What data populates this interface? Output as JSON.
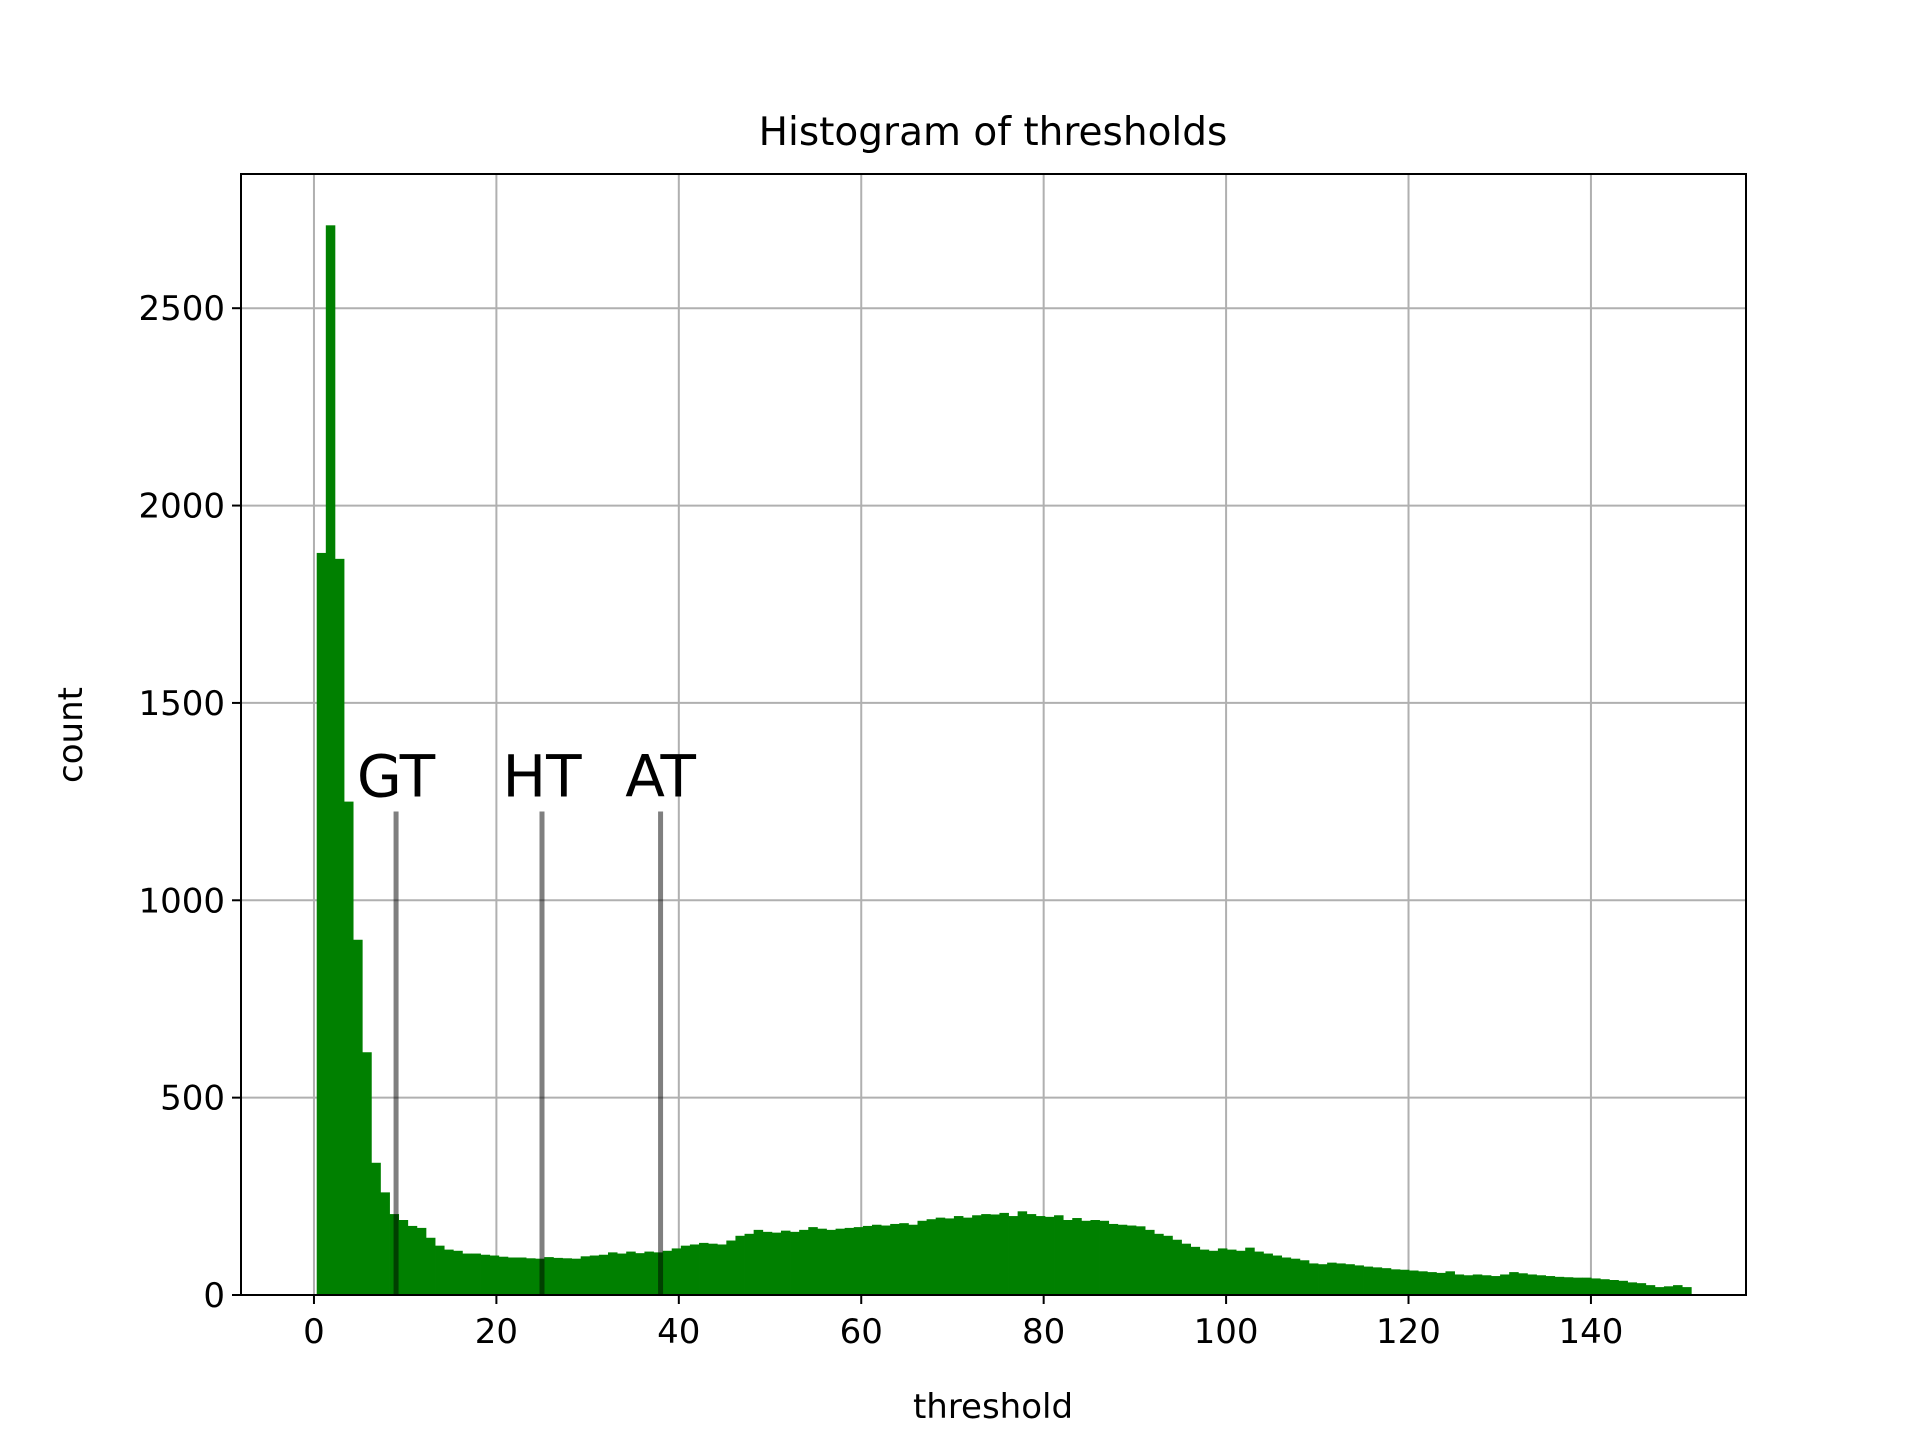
{
  "chart_data": {
    "type": "bar",
    "title": "Histogram of thresholds",
    "xlabel": "threshold",
    "ylabel": "count",
    "xlim": [
      -8,
      157
    ],
    "ylim": [
      0,
      2840
    ],
    "xticks": [
      0,
      20,
      40,
      60,
      80,
      100,
      120,
      140
    ],
    "yticks": [
      0,
      500,
      1000,
      1500,
      2000,
      2500
    ],
    "grid": true,
    "bar_color": "#008000",
    "bin_start": 0.3,
    "bin_width": 0.998,
    "counts": [
      1880,
      2710,
      1865,
      1250,
      900,
      615,
      335,
      260,
      205,
      190,
      175,
      170,
      145,
      125,
      115,
      112,
      105,
      105,
      102,
      100,
      97,
      95,
      95,
      93,
      92,
      96,
      94,
      93,
      92,
      98,
      100,
      102,
      108,
      105,
      110,
      106,
      110,
      108,
      112,
      118,
      125,
      128,
      132,
      130,
      128,
      138,
      150,
      155,
      165,
      160,
      158,
      163,
      160,
      165,
      172,
      168,
      165,
      168,
      170,
      172,
      175,
      178,
      176,
      180,
      182,
      178,
      188,
      192,
      196,
      194,
      200,
      196,
      202,
      205,
      204,
      208,
      200,
      212,
      205,
      200,
      198,
      202,
      190,
      195,
      188,
      190,
      188,
      180,
      178,
      176,
      174,
      165,
      155,
      150,
      140,
      130,
      122,
      115,
      112,
      118,
      115,
      112,
      120,
      110,
      105,
      100,
      95,
      92,
      88,
      80,
      78,
      82,
      80,
      78,
      75,
      72,
      70,
      68,
      65,
      64,
      62,
      60,
      58,
      56,
      60,
      52,
      50,
      52,
      50,
      48,
      52,
      58,
      55,
      52,
      50,
      48,
      46,
      45,
      44,
      44,
      42,
      40,
      38,
      36,
      32,
      30,
      25,
      20,
      22,
      25,
      20
    ],
    "vlines": [
      {
        "label": "GT",
        "x": 9,
        "ymax": 1225
      },
      {
        "label": "HT",
        "x": 25,
        "ymax": 1225
      },
      {
        "label": "AT",
        "x": 38,
        "ymax": 1225
      }
    ]
  }
}
